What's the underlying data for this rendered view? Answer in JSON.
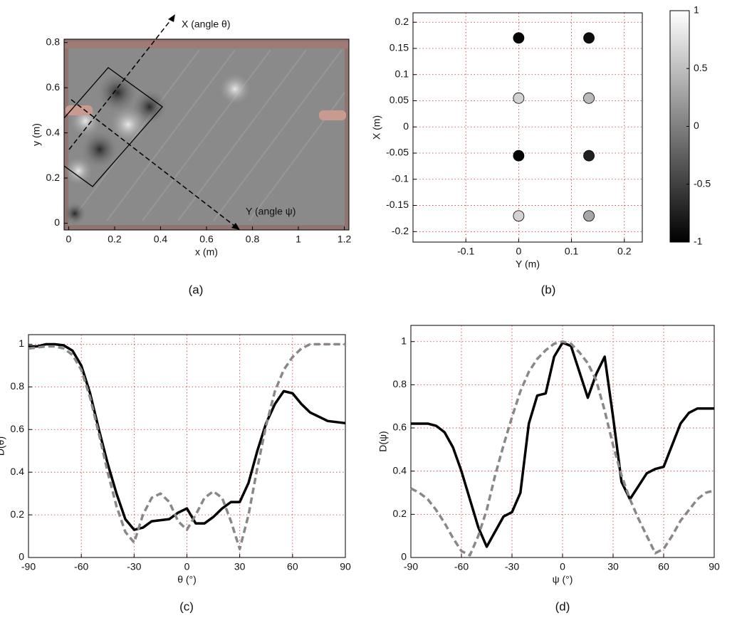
{
  "chart_data": [
    {
      "type": "image",
      "caption": "(a)",
      "xlabel": "x (m)",
      "ylabel": "y (m)",
      "xlim": [
        -0.02,
        1.22
      ],
      "xticks": [
        0,
        0.2,
        0.4,
        0.6,
        0.8,
        1,
        1.2
      ],
      "ylim": [
        -0.03,
        0.815
      ],
      "yticks": [
        0,
        0.2,
        0.4,
        0.6,
        0.8
      ],
      "annotations": [
        "X (angle θ)",
        "Y (angle ψ)"
      ]
    },
    {
      "type": "scatter",
      "caption": "(b)",
      "xlabel": "Y (m)",
      "ylabel": "X (m)",
      "grid": true,
      "xlim": [
        -0.2,
        0.234
      ],
      "xticks": [
        -0.1,
        0,
        0.1,
        0.2
      ],
      "ylim": [
        -0.22,
        0.218
      ],
      "yticks": [
        -0.2,
        -0.15,
        -0.1,
        -0.05,
        0,
        0.05,
        0.1,
        0.15,
        0.2
      ],
      "x": [
        0,
        0.133,
        0,
        0.133,
        0,
        0.133,
        0,
        0.133
      ],
      "y": [
        0.17,
        0.17,
        0.055,
        0.055,
        -0.055,
        -0.055,
        -0.17,
        -0.17
      ],
      "c": [
        -0.95,
        -0.9,
        0.65,
        0.45,
        -0.95,
        -0.75,
        0.65,
        0.3
      ],
      "colormap": "gray",
      "clim": [
        -1,
        1
      ],
      "cticks": [
        -1,
        -0.5,
        0,
        0.5,
        1
      ]
    },
    {
      "type": "line",
      "caption": "(c)",
      "xlabel": "θ (°)",
      "ylabel": "D(θ)",
      "grid": true,
      "xlim": [
        -90,
        90
      ],
      "xticks": [
        -90,
        -60,
        -30,
        0,
        30,
        60,
        90
      ],
      "ylim": [
        0,
        1.045
      ],
      "yticks": [
        0,
        0.2,
        0.4,
        0.6,
        0.8,
        1
      ],
      "x": [
        -90,
        -85,
        -80,
        -75,
        -70,
        -65,
        -60,
        -55,
        -50,
        -45,
        -40,
        -35,
        -30,
        -25,
        -20,
        -15,
        -10,
        -5,
        0,
        5,
        10,
        15,
        20,
        25,
        30,
        35,
        40,
        45,
        50,
        55,
        60,
        65,
        70,
        75,
        80,
        85,
        90
      ],
      "series": [
        {
          "color": "#000000",
          "style": "solid",
          "values": [
            0.99,
            0.99,
            1.0,
            1.0,
            0.995,
            0.97,
            0.9,
            0.77,
            0.6,
            0.44,
            0.3,
            0.18,
            0.13,
            0.14,
            0.17,
            0.175,
            0.18,
            0.21,
            0.23,
            0.16,
            0.16,
            0.19,
            0.23,
            0.26,
            0.26,
            0.35,
            0.5,
            0.63,
            0.72,
            0.78,
            0.77,
            0.72,
            0.68,
            0.66,
            0.64,
            0.635,
            0.63
          ]
        },
        {
          "color": "#888888",
          "style": "dashed",
          "values": [
            0.98,
            0.985,
            0.99,
            0.99,
            0.98,
            0.95,
            0.88,
            0.75,
            0.58,
            0.4,
            0.24,
            0.12,
            0.07,
            0.2,
            0.28,
            0.3,
            0.26,
            0.17,
            0.13,
            0.2,
            0.28,
            0.31,
            0.28,
            0.17,
            0.04,
            0.2,
            0.42,
            0.62,
            0.78,
            0.88,
            0.94,
            0.98,
            1.0,
            1.0,
            1.0,
            1.0,
            1.0
          ]
        }
      ]
    },
    {
      "type": "line",
      "caption": "(d)",
      "xlabel": "ψ (°)",
      "ylabel": "D(ψ)",
      "grid": true,
      "xlim": [
        -90,
        90
      ],
      "xticks": [
        -90,
        -60,
        -30,
        0,
        30,
        60,
        90
      ],
      "ylim": [
        0,
        1.075
      ],
      "yticks": [
        0,
        0.2,
        0.4,
        0.6,
        0.8,
        1
      ],
      "x": [
        -90,
        -85,
        -80,
        -75,
        -70,
        -65,
        -60,
        -55,
        -50,
        -45,
        -40,
        -35,
        -30,
        -25,
        -20,
        -15,
        -10,
        -5,
        0,
        5,
        10,
        15,
        20,
        25,
        30,
        35,
        40,
        45,
        50,
        55,
        60,
        65,
        70,
        75,
        80,
        85,
        90
      ],
      "series": [
        {
          "color": "#000000",
          "style": "solid",
          "values": [
            0.62,
            0.62,
            0.62,
            0.61,
            0.58,
            0.51,
            0.4,
            0.27,
            0.14,
            0.05,
            0.12,
            0.19,
            0.21,
            0.3,
            0.62,
            0.75,
            0.76,
            0.93,
            0.995,
            0.98,
            0.86,
            0.74,
            0.85,
            0.93,
            0.65,
            0.35,
            0.27,
            0.33,
            0.39,
            0.41,
            0.42,
            0.52,
            0.62,
            0.67,
            0.69,
            0.69,
            0.69
          ]
        },
        {
          "color": "#888888",
          "style": "dashed",
          "values": [
            0.32,
            0.3,
            0.27,
            0.22,
            0.16,
            0.09,
            0.03,
            0.01,
            0.1,
            0.22,
            0.38,
            0.52,
            0.65,
            0.77,
            0.86,
            0.92,
            0.96,
            0.99,
            1.0,
            0.99,
            0.95,
            0.9,
            0.82,
            0.68,
            0.52,
            0.38,
            0.27,
            0.18,
            0.1,
            0.02,
            0.04,
            0.1,
            0.17,
            0.22,
            0.27,
            0.3,
            0.31
          ]
        }
      ]
    }
  ]
}
